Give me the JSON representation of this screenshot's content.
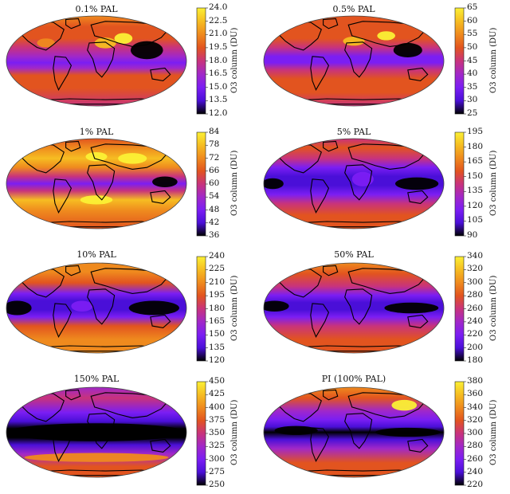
{
  "colorbar_label": "O3 column (DU)",
  "colormap": [
    "#000000",
    "#4a0fd8",
    "#7b1ef3",
    "#a128c8",
    "#c8337c",
    "#e2541f",
    "#ef8a1e",
    "#f6bd22",
    "#fbf035"
  ],
  "continent_color": "#000000",
  "panels": [
    {
      "title": "0.1% PAL",
      "ticks": [
        "24.0",
        "22.5",
        "21.0",
        "19.5",
        "18.0",
        "16.5",
        "15.0",
        "13.5",
        "12.0"
      ],
      "range": [
        12.0,
        24.0
      ]
    },
    {
      "title": "0.5% PAL",
      "ticks": [
        "65",
        "60",
        "55",
        "50",
        "45",
        "40",
        "35",
        "30",
        "25"
      ],
      "range": [
        25,
        65
      ]
    },
    {
      "title": "1% PAL",
      "ticks": [
        "84",
        "78",
        "72",
        "66",
        "60",
        "54",
        "48",
        "42",
        "36"
      ],
      "range": [
        36,
        84
      ]
    },
    {
      "title": "5% PAL",
      "ticks": [
        "195",
        "180",
        "165",
        "150",
        "135",
        "120",
        "105",
        "90"
      ],
      "range": [
        90,
        195
      ]
    },
    {
      "title": "10% PAL",
      "ticks": [
        "240",
        "225",
        "210",
        "195",
        "180",
        "165",
        "150",
        "135",
        "120"
      ],
      "range": [
        120,
        240
      ]
    },
    {
      "title": "50% PAL",
      "ticks": [
        "340",
        "320",
        "300",
        "280",
        "260",
        "240",
        "220",
        "200",
        "180"
      ],
      "range": [
        180,
        340
      ]
    },
    {
      "title": "150% PAL",
      "ticks": [
        "450",
        "425",
        "400",
        "375",
        "350",
        "325",
        "300",
        "275",
        "250"
      ],
      "range": [
        250,
        450
      ]
    },
    {
      "title": "PI (100% PAL)",
      "ticks": [
        "380",
        "360",
        "340",
        "320",
        "300",
        "280",
        "260",
        "240",
        "220"
      ],
      "range": [
        220,
        380
      ]
    }
  ]
}
